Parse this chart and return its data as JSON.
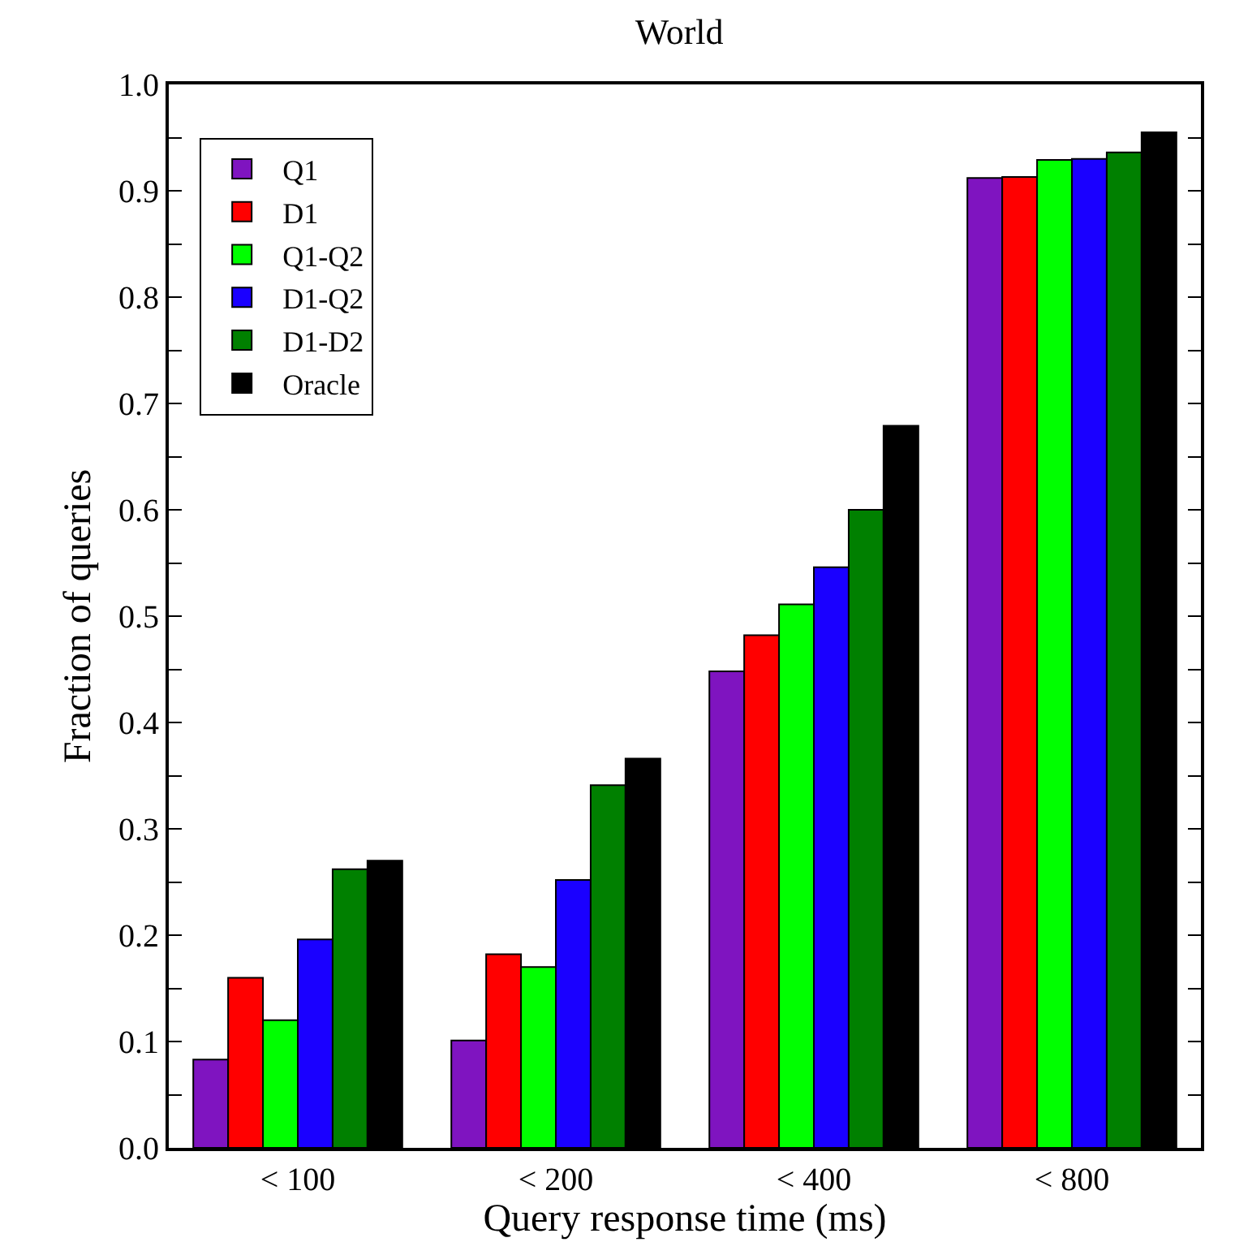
{
  "chart_data": {
    "type": "bar",
    "title": "World",
    "xlabel": "Query response time (ms)",
    "ylabel": "Fraction of queries",
    "categories": [
      "< 100",
      "< 200",
      "< 400",
      "< 800"
    ],
    "series": [
      {
        "name": "Q1",
        "color": "#7f14c0",
        "values": [
          0.083,
          0.101,
          0.448,
          0.912
        ]
      },
      {
        "name": "D1",
        "color": "#ff0000",
        "values": [
          0.16,
          0.182,
          0.482,
          0.913
        ]
      },
      {
        "name": "Q1-Q2",
        "color": "#00ff00",
        "values": [
          0.12,
          0.17,
          0.511,
          0.929
        ]
      },
      {
        "name": "D1-Q2",
        "color": "#1a00ff",
        "values": [
          0.196,
          0.252,
          0.546,
          0.93
        ]
      },
      {
        "name": "D1-D2",
        "color": "#008000",
        "values": [
          0.262,
          0.341,
          0.6,
          0.936
        ]
      },
      {
        "name": "Oracle",
        "color": "#000000",
        "values": [
          0.27,
          0.366,
          0.679,
          0.955
        ]
      }
    ],
    "ylim": [
      0,
      1
    ],
    "yticks": [
      {
        "value": 0,
        "label": "0.0"
      },
      {
        "value": 0.05,
        "label": null
      },
      0.1,
      {
        "value": 0.15,
        "label": null
      },
      0.2,
      {
        "value": 0.25,
        "label": null
      },
      0.3,
      {
        "value": 0.35,
        "label": null
      },
      0.4,
      {
        "value": 0.45,
        "label": null
      },
      0.5,
      {
        "value": 0.55,
        "label": null
      },
      0.6,
      {
        "value": 0.65,
        "label": null
      },
      0.7,
      {
        "value": 0.75,
        "label": null
      },
      0.8,
      {
        "value": 0.85,
        "label": null
      },
      0.9,
      {
        "value": 0.95,
        "label": null
      },
      {
        "value": 1,
        "label": "1.0"
      }
    ],
    "grid": false,
    "legend": "top left"
  }
}
